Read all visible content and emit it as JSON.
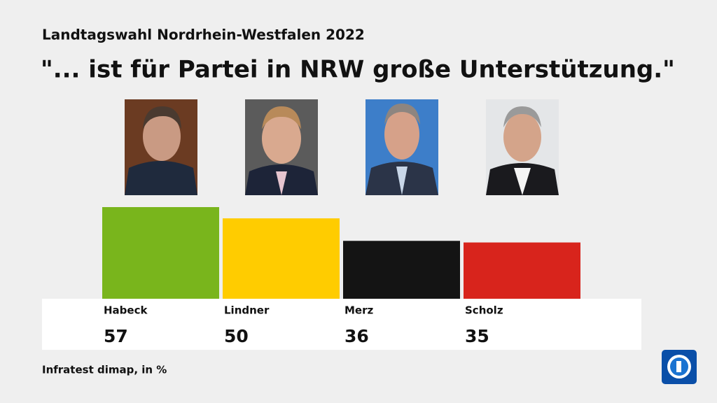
{
  "chart_data": {
    "type": "bar",
    "subtitle": "Landtagswahl Nordrhein-Westfalen 2022",
    "title": "\"... ist für Partei in NRW große Unterstützung.\"",
    "categories": [
      "Habeck",
      "Lindner",
      "Merz",
      "Scholz"
    ],
    "values": [
      57,
      50,
      36,
      35
    ],
    "colors": [
      "#79b51c",
      "#ffcc00",
      "#141414",
      "#d8241c"
    ],
    "source": "Infratest dimap, in %"
  }
}
